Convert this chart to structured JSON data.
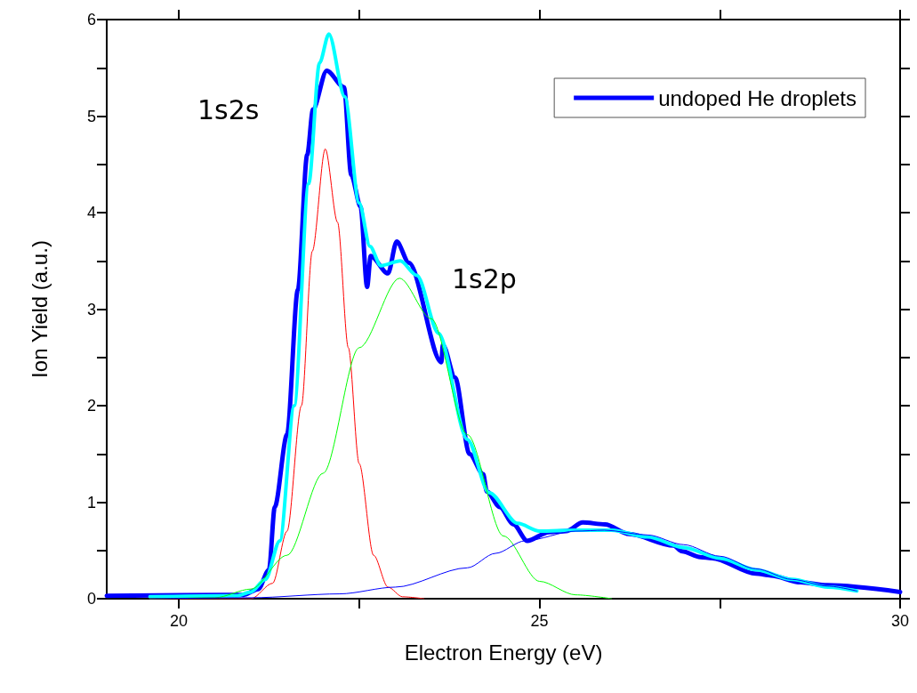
{
  "chart_data": {
    "type": "line",
    "xlabel": "Electron Energy (eV)",
    "ylabel": "Ion Yield (a.u.)",
    "xlim": [
      19,
      30
    ],
    "ylim": [
      0,
      6
    ],
    "xticks": [
      20,
      {
        "value": 22.5,
        "label": null
      },
      25,
      {
        "value": 27.5,
        "label": null
      },
      30
    ],
    "yticks": [
      0,
      {
        "value": 0.5,
        "label": null
      },
      1,
      {
        "value": 1.5,
        "label": null
      },
      2,
      {
        "value": 2.5,
        "label": null
      },
      3,
      {
        "value": 3.5,
        "label": null
      },
      4,
      {
        "value": 4.5,
        "label": null
      },
      5,
      {
        "value": 5.5,
        "label": null
      },
      6
    ],
    "grid": false,
    "legend": "top right",
    "marker": "none",
    "line_style": "solid",
    "annotations": [
      "1s2s",
      "1s2p"
    ],
    "series": [
      {
        "name": "undoped He droplets",
        "color": "#0000ff",
        "x": [
          19,
          20.9,
          21.1,
          21.25,
          21.33,
          21.5,
          21.65,
          21.78,
          21.86,
          22.05,
          22.29,
          22.39,
          22.52,
          22.61,
          22.66,
          22.9,
          23.02,
          23.19,
          23.64,
          23.66,
          23.83,
          24.03,
          24.22,
          24.27,
          24.45,
          24.64,
          24.83,
          25.13,
          25.37,
          25.6,
          25.91,
          26.24,
          26.86,
          26.98,
          27.23,
          27.39,
          28,
          28.21,
          28.62,
          28.99,
          30
        ],
        "values": [
          0.03,
          0.04,
          0.1,
          0.3,
          0.95,
          1.7,
          3.2,
          4.6,
          5.07,
          5.47,
          5.3,
          4.39,
          4.06,
          3.23,
          3.55,
          3.37,
          3.7,
          3.48,
          2.45,
          2.63,
          2.29,
          1.5,
          1.29,
          1.11,
          0.95,
          0.77,
          0.6,
          0.69,
          0.7,
          0.79,
          0.77,
          0.67,
          0.55,
          0.49,
          0.43,
          0.42,
          0.26,
          0.24,
          0.17,
          0.14,
          0.07
        ]
      },
      {
        "color": "#00ffff",
        "x": [
          19.6,
          20.8,
          21,
          21.2,
          21.4,
          21.6,
          21.8,
          21.95,
          22.08,
          22.3,
          22.5,
          22.65,
          22.8,
          23.07,
          23.3,
          23.6,
          24,
          24.3,
          24.7,
          25,
          25.5,
          26,
          26.5,
          27,
          27.5,
          28,
          28.5,
          29,
          29.4
        ],
        "values": [
          0.02,
          0.03,
          0.07,
          0.2,
          0.6,
          2,
          4.3,
          5.55,
          5.85,
          5.2,
          4.1,
          3.65,
          3.45,
          3.5,
          3.35,
          2.75,
          1.65,
          1.1,
          0.78,
          0.7,
          0.71,
          0.71,
          0.64,
          0.53,
          0.42,
          0.3,
          0.2,
          0.12,
          0.08
        ]
      },
      {
        "color": "#ff0000",
        "x": [
          19.6,
          21,
          21.3,
          21.5,
          21.7,
          21.85,
          22.03,
          22.2,
          22.35,
          22.5,
          22.7,
          22.9,
          23.1,
          23.4
        ],
        "values": [
          0,
          0,
          0.16,
          0.7,
          2,
          3.6,
          4.66,
          3.9,
          2.6,
          1.4,
          0.45,
          0.12,
          0.02,
          0
        ]
      },
      {
        "color": "#00ff00",
        "x": [
          19.6,
          20.5,
          21,
          21.5,
          22,
          22.5,
          23.06,
          23.5,
          24,
          24.5,
          25,
          25.5,
          26
        ],
        "values": [
          0,
          0.01,
          0.1,
          0.45,
          1.3,
          2.6,
          3.32,
          2.9,
          1.7,
          0.65,
          0.18,
          0.04,
          0
        ]
      },
      {
        "color": "#0000ff",
        "x": [
          19.6,
          21,
          22.23,
          23,
          24,
          24.39,
          24.8,
          25.5,
          25.9,
          26.5,
          27,
          27.5,
          28,
          28.5,
          29,
          29.4
        ],
        "values": [
          0,
          0.01,
          0.05,
          0.12,
          0.32,
          0.47,
          0.6,
          0.7,
          0.71,
          0.66,
          0.56,
          0.44,
          0.31,
          0.2,
          0.13,
          0.08
        ]
      }
    ]
  }
}
